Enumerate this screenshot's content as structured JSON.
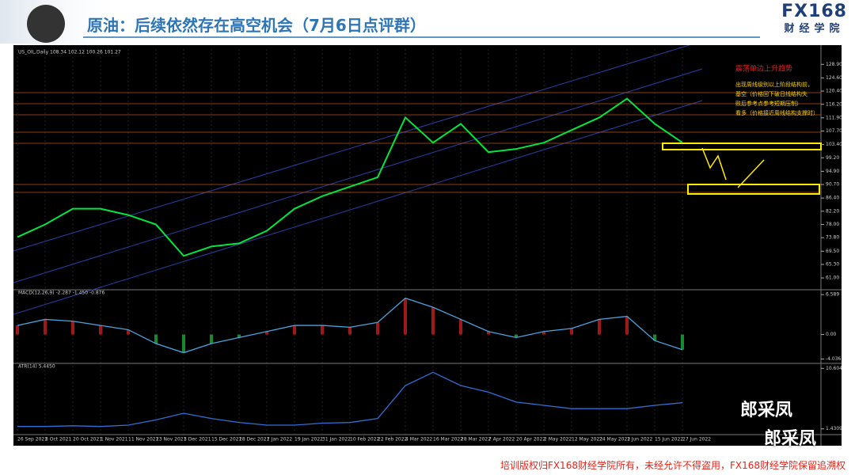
{
  "header": {
    "title": "原油：后续依然存在高空机会（7月6日点评群）",
    "logo": "FX168",
    "logo_sub": "财经学院"
  },
  "footer": "培训版权归FX168财经学院所有，未经允许不得盗用，FX168财经学院保留追溯权",
  "watermarks": [
    "郎采凤",
    "郎采凤"
  ],
  "annotations": {
    "trend": "震荡单边上升趋势",
    "notes": [
      "出现周线级别以上阶段结构前，",
      "基空（价格回下破日线结构失",
      "败后参考点参考短期压制）",
      "看多（价格接近周线结构支撑时）"
    ]
  },
  "chart_data": [
    {
      "type": "line",
      "title": "US_OIL,Daily 108.34 102.12 100.26 101.27",
      "categories": [
        "26 Sep 2021",
        "8 Oct 2021",
        "20 Oct 2021",
        "1 Nov 2021",
        "11 Nov 2021",
        "23 Nov 2021",
        "3 Dec 2021",
        "15 Dec 2021",
        "28 Dec 2021",
        "7 Jan 2022",
        "19 Jan 2022",
        "31 Jan 2022",
        "10 Feb 2022",
        "22 Feb 2022",
        "4 Mar 2022",
        "16 Mar 2022",
        "28 Mar 2022",
        "7 Apr 2022",
        "20 Apr 2022",
        "2 May 2022",
        "12 May 2022",
        "24 May 2022",
        "3 Jun 2022",
        "15 Jun 2022",
        "27 Jun 2022"
      ],
      "series": [
        {
          "color": "#00e640",
          "values": [
            74,
            78,
            83,
            83,
            81,
            78,
            68,
            71,
            72,
            76,
            83,
            87,
            90,
            93,
            112,
            104,
            110,
            101,
            102,
            104,
            108,
            112,
            118,
            110,
            104
          ]
        }
      ],
      "ylim": [
        58,
        133
      ],
      "yticks": [
        {
          "value": 128.9,
          "label": "128.90"
        },
        {
          "value": 124.6,
          "label": "124.60"
        },
        {
          "value": 120.4,
          "label": "120.40"
        },
        {
          "value": 116.2,
          "label": "116.20"
        },
        {
          "value": 111.9,
          "label": "111.90"
        },
        {
          "value": 107.7,
          "label": "107.70"
        },
        {
          "value": 103.4,
          "label": "103.40"
        },
        {
          "value": 99.2,
          "label": "99.20"
        },
        {
          "value": 94.9,
          "label": "94.90"
        },
        {
          "value": 90.7,
          "label": "90.70"
        },
        {
          "value": 86.4,
          "label": "86.40"
        },
        {
          "value": 82.2,
          "label": "82.20"
        },
        {
          "value": 78,
          "label": "78.00"
        },
        {
          "value": 73.8,
          "label": "73.80"
        },
        {
          "value": 69.5,
          "label": "69.50"
        },
        {
          "value": 65.3,
          "label": "65.30"
        },
        {
          "value": 61,
          "label": "61.00"
        }
      ]
    },
    {
      "type": "line",
      "title": "MACD(12,26,9) -2.287 -1.450 -0.876",
      "series": [
        {
          "color": "#4aa3df",
          "values": [
            1.5,
            2.5,
            2.2,
            1.5,
            0.8,
            -1.5,
            -3,
            -1.5,
            -0.5,
            0.5,
            1.5,
            1.5,
            1.2,
            2,
            6,
            4.5,
            2.5,
            0.5,
            -0.5,
            0.5,
            1,
            2.5,
            3,
            -1,
            -2.5
          ]
        }
      ],
      "ylim": [
        -4.5,
        7
      ],
      "yticks": [
        {
          "value": 6.589,
          "label": "6.589"
        },
        {
          "value": 0,
          "label": "0.00"
        },
        {
          "value": -4.036,
          "label": "-4.036"
        }
      ]
    },
    {
      "type": "line",
      "title": "ATR(14) 5.4450",
      "series": [
        {
          "color": "#2f6fd6",
          "values": [
            1.8,
            1.8,
            1.9,
            1.8,
            2,
            2.8,
            3.8,
            3,
            2.4,
            2,
            2,
            2.3,
            2.4,
            3,
            8,
            10,
            8,
            7,
            5.5,
            5,
            4.5,
            4.5,
            4.5,
            5,
            5.4
          ]
        }
      ],
      "ylim": [
        0.8,
        11
      ],
      "yticks": [
        {
          "value": 10.6045,
          "label": "10.6045"
        },
        {
          "value": 1.4309,
          "label": "1.4309"
        }
      ]
    }
  ]
}
